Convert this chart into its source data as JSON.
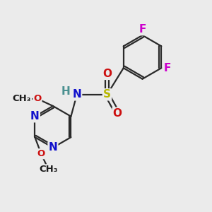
{
  "bg_color": "#ebebeb",
  "bond_color": "#2a2a2a",
  "bond_width": 1.6,
  "atom_colors": {
    "C": "#1a1a1a",
    "N": "#1010cc",
    "O": "#cc1010",
    "S": "#b8b800",
    "F": "#cc00cc",
    "H": "#4a9090"
  },
  "font_size_atom": 11,
  "font_size_small": 9.5
}
